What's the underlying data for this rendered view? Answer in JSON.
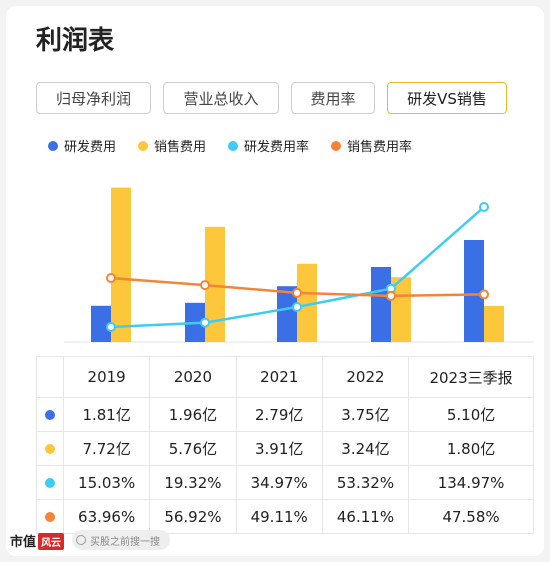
{
  "page": {
    "title": "利润表"
  },
  "tabs": [
    {
      "label": "归母净利润",
      "active": false
    },
    {
      "label": "营业总收入",
      "active": false
    },
    {
      "label": "费用率",
      "active": false
    },
    {
      "label": "研发VS销售",
      "active": true
    }
  ],
  "legend": [
    {
      "label": "研发费用",
      "color": "#3b6fe6"
    },
    {
      "label": "销售费用",
      "color": "#fcc73b"
    },
    {
      "label": "研发费用率",
      "color": "#3ecdf2"
    },
    {
      "label": "销售费用率",
      "color": "#f4843a"
    }
  ],
  "chart_data": {
    "type": "bar",
    "categories": [
      "2019",
      "2020",
      "2021",
      "2022",
      "2023三季报"
    ],
    "series": [
      {
        "name": "研发费用",
        "type": "bar",
        "values": [
          1.81,
          1.96,
          2.79,
          3.75,
          5.1
        ],
        "unit": "亿",
        "color": "#3b6fe6"
      },
      {
        "name": "销售费用",
        "type": "bar",
        "values": [
          7.72,
          5.76,
          3.91,
          3.24,
          1.8
        ],
        "unit": "亿",
        "color": "#fcc73b"
      },
      {
        "name": "研发费用率",
        "type": "line",
        "values": [
          15.03,
          19.32,
          34.97,
          53.32,
          134.97
        ],
        "unit": "%",
        "color": "#3ecdf2"
      },
      {
        "name": "销售费用率",
        "type": "line",
        "values": [
          63.96,
          56.92,
          49.11,
          46.11,
          47.58
        ],
        "unit": "%",
        "color": "#f4843a"
      }
    ],
    "grid": false,
    "legend_position": "top"
  },
  "table": {
    "headers": [
      "2019",
      "2020",
      "2021",
      "2022",
      "2023三季报"
    ],
    "rows": [
      {
        "color": "#3b6fe6",
        "cells": [
          "1.81亿",
          "1.96亿",
          "2.79亿",
          "3.75亿",
          "5.10亿"
        ]
      },
      {
        "color": "#fcc73b",
        "cells": [
          "7.72亿",
          "5.76亿",
          "3.91亿",
          "3.24亿",
          "1.80亿"
        ]
      },
      {
        "color": "#3ecdf2",
        "cells": [
          "15.03%",
          "19.32%",
          "34.97%",
          "53.32%",
          "134.97%"
        ]
      },
      {
        "color": "#f4843a",
        "cells": [
          "63.96%",
          "56.92%",
          "49.11%",
          "46.11%",
          "47.58%"
        ]
      }
    ]
  },
  "footer": {
    "logo_text": "市值",
    "logo_seal": "风云",
    "search_placeholder": "买股之前搜一搜"
  }
}
